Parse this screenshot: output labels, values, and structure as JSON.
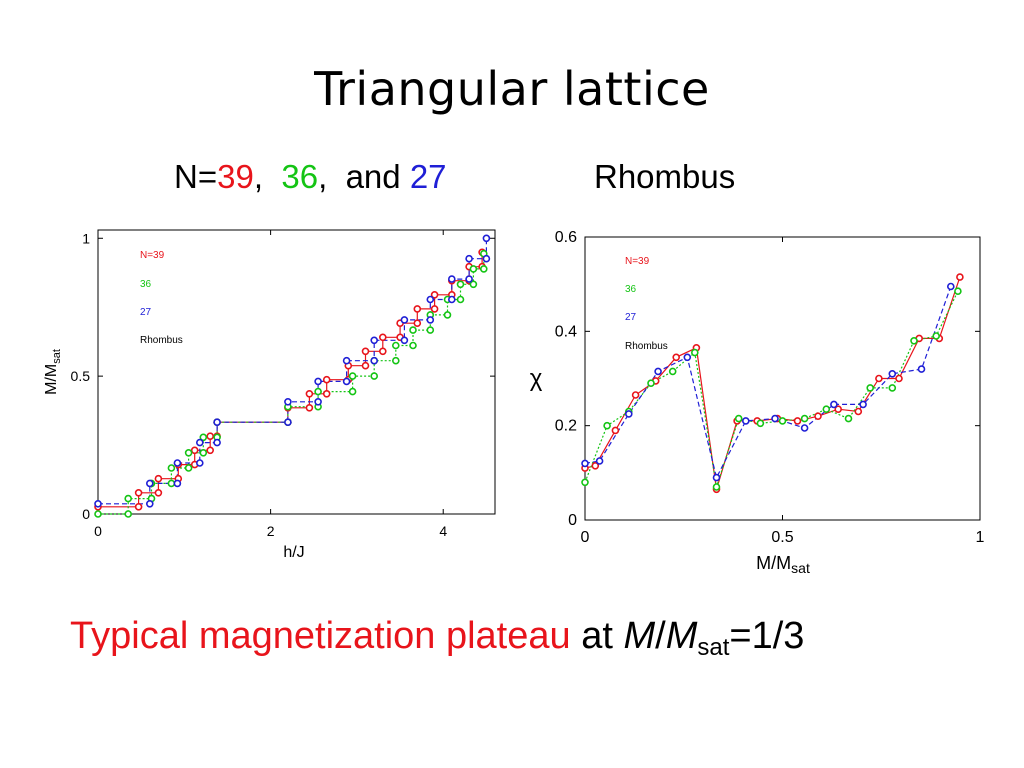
{
  "slide": {
    "title": "Triangular lattice",
    "subtitle": {
      "prefix": "N=",
      "n1": "39",
      "sep1": ",",
      "n2": "36",
      "sep2": ",",
      "mid": "and",
      "n3": "27",
      "rhombus": "Rhombus"
    },
    "caption": {
      "red": "Typical magnetization plateau",
      "at": "at",
      "m1": "M",
      "slash": "/",
      "m2": "M",
      "sub": "sat",
      "eq": "=1/3"
    }
  },
  "colors": {
    "red": "#e8141b",
    "green": "#14c414",
    "blue": "#1f1fd6"
  },
  "chart_data": [
    {
      "type": "line",
      "xlabel": "h/J",
      "ylabel_main": "M/M",
      "ylabel_sub": "sat",
      "xlim": [
        0,
        4.6
      ],
      "ylim": [
        0,
        1.03
      ],
      "xticks": [
        0,
        2,
        4
      ],
      "yticks": [
        0,
        0.5,
        1
      ],
      "ytick_labels": [
        "0",
        "0.5",
        "1"
      ],
      "legend_position": "top-left",
      "legend": [
        "N=39",
        "36",
        "27",
        "Rhombus"
      ],
      "series": [
        {
          "name": "N=39",
          "color": "#e8141b",
          "dash": "solid",
          "points": [
            [
              0,
              0.026
            ],
            [
              0.47,
              0.026
            ],
            [
              0.47,
              0.077
            ],
            [
              0.7,
              0.077
            ],
            [
              0.7,
              0.128
            ],
            [
              0.93,
              0.128
            ],
            [
              0.93,
              0.179
            ],
            [
              1.12,
              0.179
            ],
            [
              1.12,
              0.231
            ],
            [
              1.3,
              0.231
            ],
            [
              1.3,
              0.282
            ],
            [
              1.38,
              0.282
            ],
            [
              1.38,
              0.333
            ],
            [
              2.2,
              0.333
            ],
            [
              2.2,
              0.385
            ],
            [
              2.45,
              0.385
            ],
            [
              2.45,
              0.436
            ],
            [
              2.65,
              0.436
            ],
            [
              2.65,
              0.487
            ],
            [
              2.9,
              0.487
            ],
            [
              2.9,
              0.538
            ],
            [
              3.1,
              0.538
            ],
            [
              3.1,
              0.59
            ],
            [
              3.3,
              0.59
            ],
            [
              3.3,
              0.641
            ],
            [
              3.5,
              0.641
            ],
            [
              3.5,
              0.692
            ],
            [
              3.7,
              0.692
            ],
            [
              3.7,
              0.744
            ],
            [
              3.9,
              0.744
            ],
            [
              3.9,
              0.795
            ],
            [
              4.1,
              0.795
            ],
            [
              4.1,
              0.846
            ],
            [
              4.3,
              0.846
            ],
            [
              4.3,
              0.897
            ],
            [
              4.45,
              0.897
            ],
            [
              4.45,
              0.949
            ]
          ]
        },
        {
          "name": "36",
          "color": "#14c414",
          "dash": "dotted",
          "points": [
            [
              0,
              0
            ],
            [
              0.35,
              0
            ],
            [
              0.35,
              0.056
            ],
            [
              0.62,
              0.056
            ],
            [
              0.62,
              0.111
            ],
            [
              0.85,
              0.111
            ],
            [
              0.85,
              0.167
            ],
            [
              1.05,
              0.167
            ],
            [
              1.05,
              0.222
            ],
            [
              1.22,
              0.222
            ],
            [
              1.22,
              0.278
            ],
            [
              1.38,
              0.278
            ],
            [
              1.38,
              0.333
            ],
            [
              2.2,
              0.333
            ],
            [
              2.2,
              0.389
            ],
            [
              2.55,
              0.389
            ],
            [
              2.55,
              0.444
            ],
            [
              2.95,
              0.444
            ],
            [
              2.95,
              0.5
            ],
            [
              3.2,
              0.5
            ],
            [
              3.2,
              0.556
            ],
            [
              3.45,
              0.556
            ],
            [
              3.45,
              0.611
            ],
            [
              3.65,
              0.611
            ],
            [
              3.65,
              0.667
            ],
            [
              3.85,
              0.667
            ],
            [
              3.85,
              0.722
            ],
            [
              4.05,
              0.722
            ],
            [
              4.05,
              0.778
            ],
            [
              4.2,
              0.778
            ],
            [
              4.2,
              0.833
            ],
            [
              4.35,
              0.833
            ],
            [
              4.35,
              0.889
            ],
            [
              4.47,
              0.889
            ],
            [
              4.47,
              0.944
            ]
          ]
        },
        {
          "name": "27",
          "color": "#1f1fd6",
          "dash": "dashed",
          "points": [
            [
              0,
              0.037
            ],
            [
              0.6,
              0.037
            ],
            [
              0.6,
              0.111
            ],
            [
              0.92,
              0.111
            ],
            [
              0.92,
              0.185
            ],
            [
              1.18,
              0.185
            ],
            [
              1.18,
              0.259
            ],
            [
              1.38,
              0.259
            ],
            [
              1.38,
              0.333
            ],
            [
              2.2,
              0.333
            ],
            [
              2.2,
              0.407
            ],
            [
              2.55,
              0.407
            ],
            [
              2.55,
              0.481
            ],
            [
              2.88,
              0.481
            ],
            [
              2.88,
              0.556
            ],
            [
              3.2,
              0.556
            ],
            [
              3.2,
              0.63
            ],
            [
              3.55,
              0.63
            ],
            [
              3.55,
              0.704
            ],
            [
              3.85,
              0.704
            ],
            [
              3.85,
              0.778
            ],
            [
              4.1,
              0.778
            ],
            [
              4.1,
              0.852
            ],
            [
              4.3,
              0.852
            ],
            [
              4.3,
              0.926
            ],
            [
              4.5,
              0.926
            ],
            [
              4.5,
              1.0
            ]
          ]
        }
      ]
    },
    {
      "type": "line",
      "xlabel_main": "M/M",
      "xlabel_sub": "sat",
      "ylabel": "χ",
      "xlim": [
        0,
        1
      ],
      "ylim": [
        0,
        0.6
      ],
      "xticks": [
        0,
        0.5,
        1
      ],
      "yticks": [
        0,
        0.2,
        0.4,
        0.6
      ],
      "ytick_labels": [
        "0",
        "0.2",
        "0.4",
        "0.6"
      ],
      "legend_position": "top-left",
      "legend": [
        "N=39",
        "36",
        "27",
        "Rhombus"
      ],
      "series": [
        {
          "name": "N=39",
          "color": "#e8141b",
          "dash": "solid",
          "points": [
            [
              0,
              0.11
            ],
            [
              0.026,
              0.115
            ],
            [
              0.077,
              0.19
            ],
            [
              0.128,
              0.265
            ],
            [
              0.179,
              0.295
            ],
            [
              0.231,
              0.345
            ],
            [
              0.282,
              0.365
            ],
            [
              0.333,
              0.065
            ],
            [
              0.385,
              0.21
            ],
            [
              0.436,
              0.21
            ],
            [
              0.487,
              0.215
            ],
            [
              0.538,
              0.21
            ],
            [
              0.59,
              0.22
            ],
            [
              0.641,
              0.235
            ],
            [
              0.692,
              0.23
            ],
            [
              0.744,
              0.3
            ],
            [
              0.795,
              0.3
            ],
            [
              0.846,
              0.385
            ],
            [
              0.897,
              0.385
            ],
            [
              0.949,
              0.515
            ]
          ]
        },
        {
          "name": "36",
          "color": "#14c414",
          "dash": "dotted",
          "points": [
            [
              0,
              0.08
            ],
            [
              0.056,
              0.2
            ],
            [
              0.111,
              0.23
            ],
            [
              0.167,
              0.29
            ],
            [
              0.222,
              0.315
            ],
            [
              0.278,
              0.355
            ],
            [
              0.333,
              0.07
            ],
            [
              0.389,
              0.215
            ],
            [
              0.444,
              0.205
            ],
            [
              0.5,
              0.21
            ],
            [
              0.556,
              0.215
            ],
            [
              0.611,
              0.235
            ],
            [
              0.667,
              0.215
            ],
            [
              0.722,
              0.28
            ],
            [
              0.778,
              0.28
            ],
            [
              0.833,
              0.38
            ],
            [
              0.889,
              0.39
            ],
            [
              0.944,
              0.485
            ]
          ]
        },
        {
          "name": "27",
          "color": "#1f1fd6",
          "dash": "dashed",
          "points": [
            [
              0,
              0.12
            ],
            [
              0.037,
              0.125
            ],
            [
              0.111,
              0.225
            ],
            [
              0.185,
              0.315
            ],
            [
              0.259,
              0.345
            ],
            [
              0.333,
              0.09
            ],
            [
              0.407,
              0.21
            ],
            [
              0.481,
              0.215
            ],
            [
              0.556,
              0.195
            ],
            [
              0.63,
              0.245
            ],
            [
              0.704,
              0.245
            ],
            [
              0.778,
              0.31
            ],
            [
              0.852,
              0.32
            ],
            [
              0.926,
              0.495
            ]
          ]
        }
      ]
    }
  ]
}
